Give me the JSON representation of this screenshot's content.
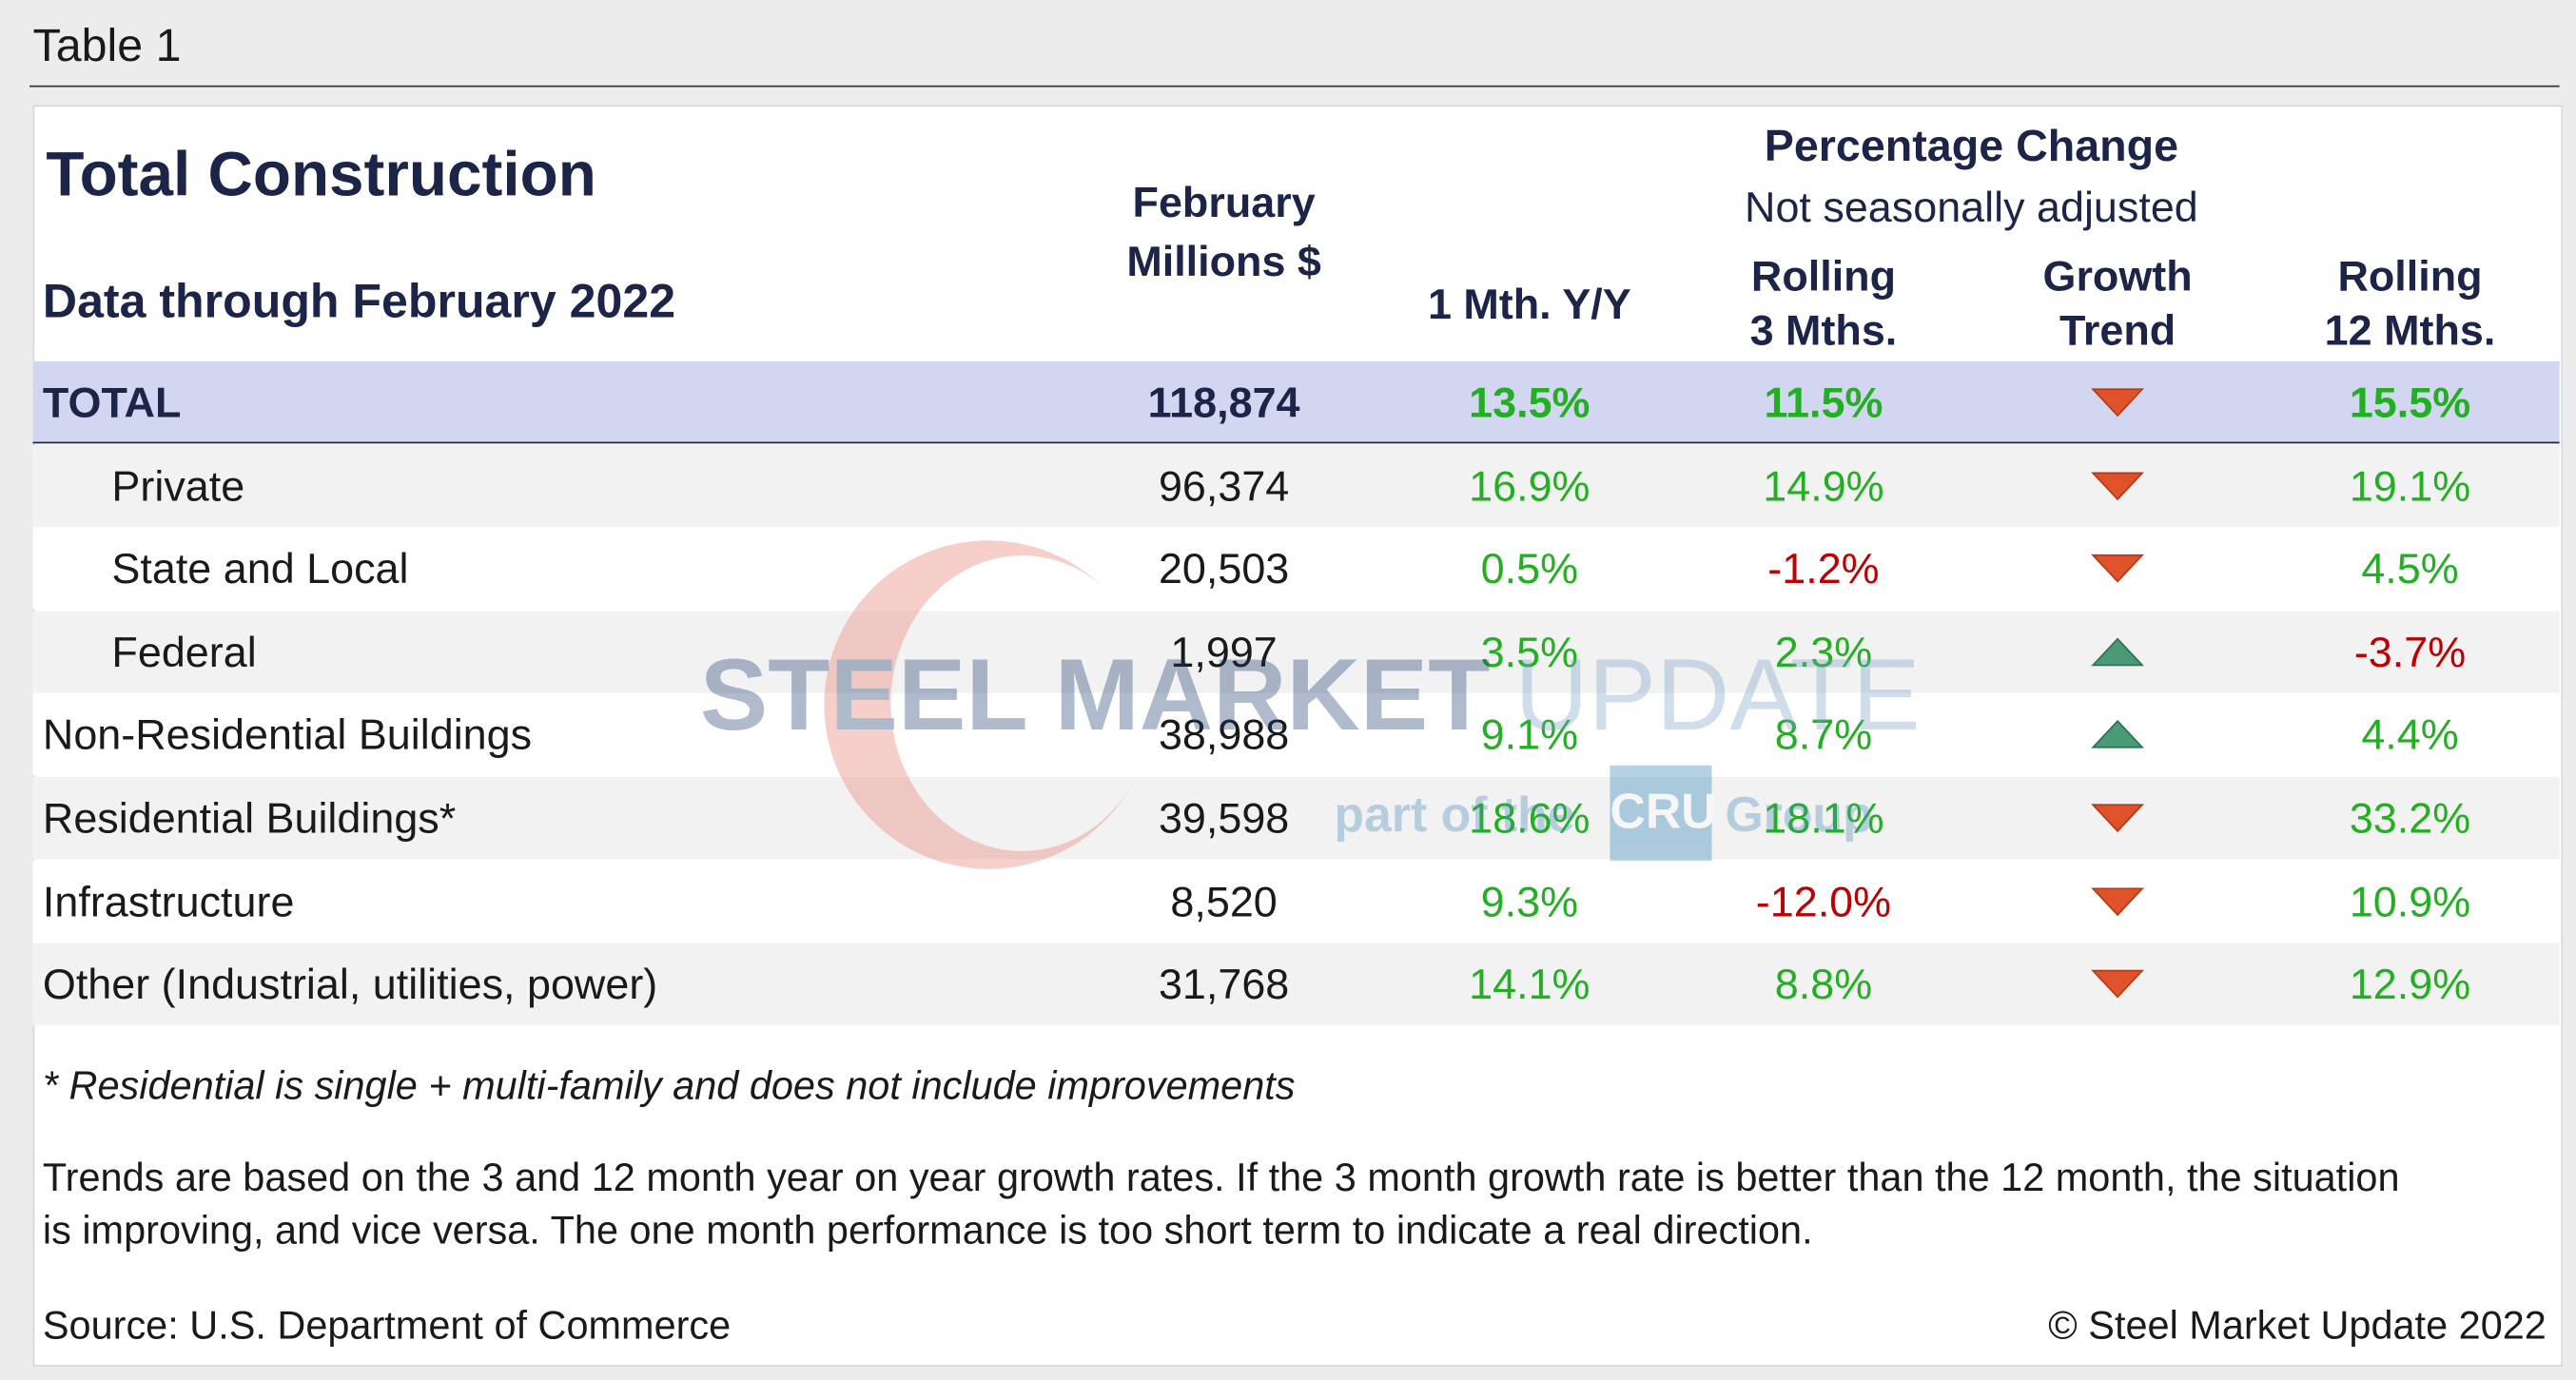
{
  "caption": "Table 1",
  "header": {
    "title": "Total Construction",
    "subtitle": "Data through February 2022",
    "value_header": [
      "February",
      "Millions $"
    ],
    "pct_header": [
      "Percentage Change",
      "Not seasonally adjusted"
    ],
    "columns": [
      [
        "1 Mth. Y/Y"
      ],
      [
        "Rolling",
        "3 Mths."
      ],
      [
        "Growth",
        "Trend"
      ],
      [
        "Rolling",
        "12 Mths."
      ]
    ]
  },
  "table": {
    "rows": [
      {
        "label": "TOTAL",
        "value": "118,874",
        "m1": "13.5%",
        "r3": "11.5%",
        "trend": "down",
        "r12": "15.5%",
        "style": "total"
      },
      {
        "label": "Private",
        "value": "96,374",
        "m1": "16.9%",
        "r3": "14.9%",
        "trend": "down",
        "r12": "19.1%",
        "style": "indent"
      },
      {
        "label": "State and Local",
        "value": "20,503",
        "m1": "0.5%",
        "r3": "-1.2%",
        "trend": "down",
        "r12": "4.5%",
        "style": "indent"
      },
      {
        "label": "Federal",
        "value": "1,997",
        "m1": "3.5%",
        "r3": "2.3%",
        "trend": "up",
        "r12": "-3.7%",
        "style": "indent"
      },
      {
        "label": "Non-Residential Buildings",
        "value": "38,988",
        "m1": "9.1%",
        "r3": "8.7%",
        "trend": "up",
        "r12": "4.4%",
        "style": "plain"
      },
      {
        "label": "Residential Buildings*",
        "value": "39,598",
        "m1": "18.6%",
        "r3": "18.1%",
        "trend": "down",
        "r12": "33.2%",
        "style": "plain"
      },
      {
        "label": "Infrastructure",
        "value": "8,520",
        "m1": "9.3%",
        "r3": "-12.0%",
        "trend": "down",
        "r12": "10.9%",
        "style": "plain"
      },
      {
        "label": "Other (Industrial, utilities, power)",
        "value": "31,768",
        "m1": "14.1%",
        "r3": "8.8%",
        "trend": "down",
        "r12": "12.9%",
        "style": "plain"
      }
    ]
  },
  "watermark": {
    "brand": "STEEL MARKET",
    "brand2": "UPDATE",
    "tagline": "part of the",
    "logo": "CRU",
    "group": "Group"
  },
  "notes": {
    "footnote": "* Residential is single + multi-family and does not include improvements",
    "trends": [
      "Trends are based on the 3 and 12 month year on year growth rates. If the 3 month growth rate is better than the 12 month, the situation",
      "is improving, and vice versa. The one month performance is too short term to indicate a real direction."
    ],
    "source": "Source: U.S. Department of Commerce",
    "copyright": "© Steel Market Update 2022"
  }
}
